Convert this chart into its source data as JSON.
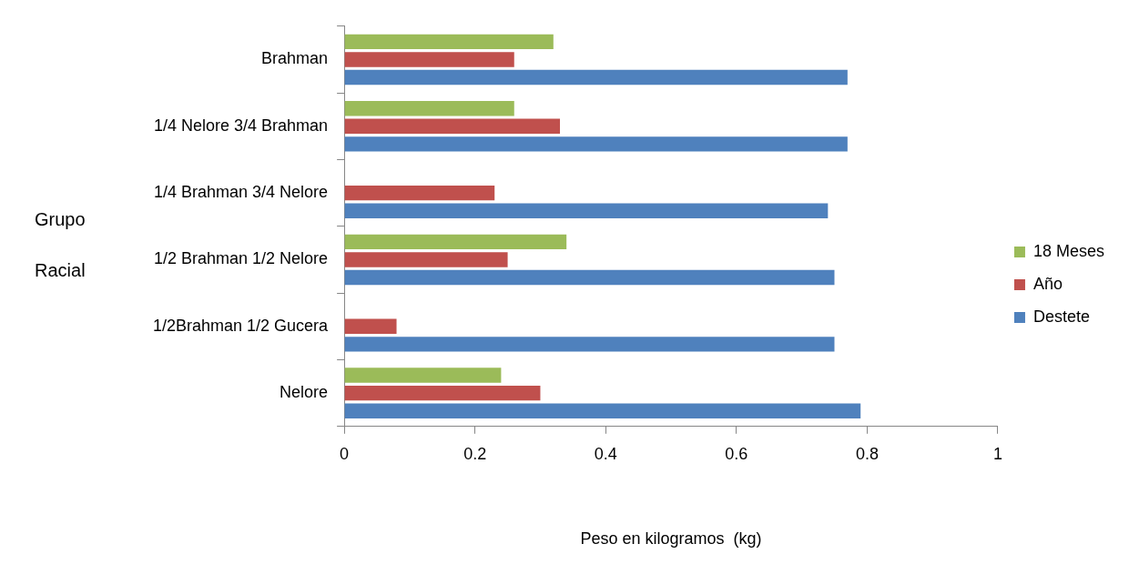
{
  "chart_data": {
    "type": "bar",
    "orientation": "horizontal",
    "xlabel": "Peso en kilogramos  (kg)",
    "ylabel": "Grupo Racial",
    "categories": [
      "Brahman",
      "1/4 Nelore 3/4 Brahman",
      "1/4 Brahman 3/4 Nelore",
      "1/2 Brahman 1/2 Nelore",
      "1/2Brahman 1/2 Gucera",
      "Nelore"
    ],
    "series": [
      {
        "name": "18 Meses",
        "color": "#9bbb59",
        "values": [
          0.32,
          0.26,
          null,
          0.34,
          null,
          0.24
        ]
      },
      {
        "name": "Año",
        "color": "#c0504d",
        "values": [
          0.26,
          0.33,
          0.23,
          0.25,
          0.08,
          0.3
        ]
      },
      {
        "name": "Destete",
        "color": "#4f81bd",
        "values": [
          0.77,
          0.77,
          0.74,
          0.75,
          0.75,
          0.79
        ]
      }
    ],
    "xlim": [
      0,
      1
    ],
    "xticks": [
      0,
      0.2,
      0.4,
      0.6,
      0.8,
      1
    ],
    "grid": false,
    "legend": "right"
  }
}
